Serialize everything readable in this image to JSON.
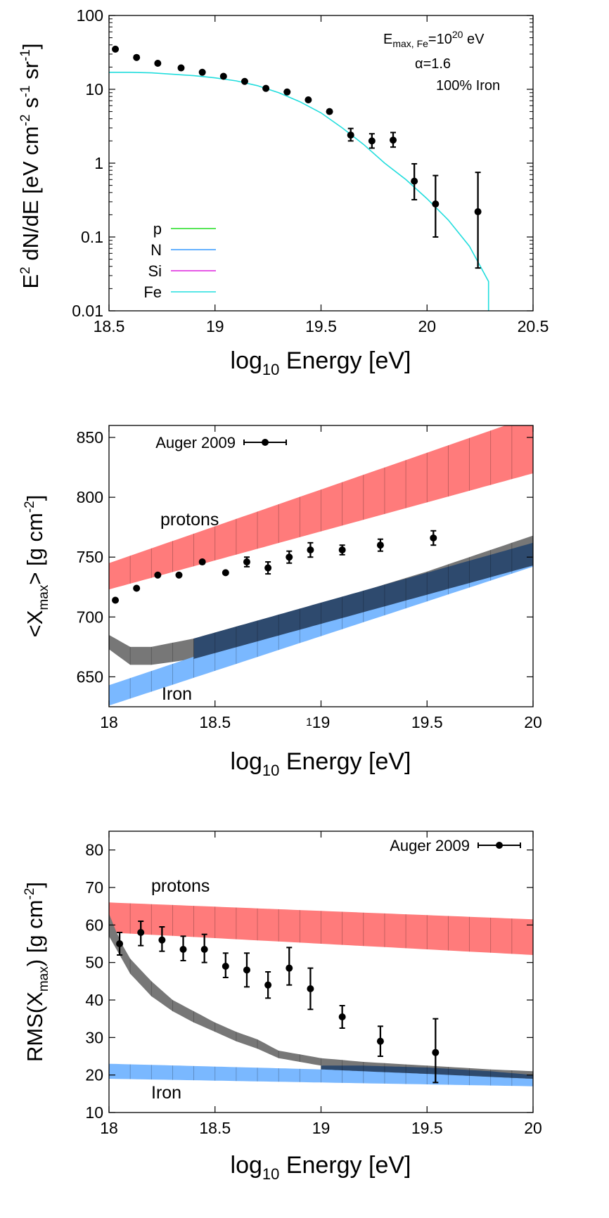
{
  "chart_data": [
    {
      "type": "scatter",
      "xlabel": {
        "main": "log",
        "sub": "10",
        "rest": " Energy [eV]"
      },
      "ylabel": {
        "pre": "E",
        "sup1": "2",
        "mid": " dN/dE [eV cm",
        "sup2": "-2",
        "mid2": " s",
        "sup3": "-1",
        "mid3": " sr",
        "sup4": "-1",
        "end": "]"
      },
      "xlim": [
        18.5,
        20.5
      ],
      "ylim": [
        0.01,
        100
      ],
      "yscale": "log",
      "xticks": [
        {
          "v": 18.5,
          "label": "18.5"
        },
        {
          "v": 19,
          "label": "19"
        },
        {
          "v": 19.5,
          "label": "19.5"
        },
        {
          "v": 20,
          "label": "20"
        },
        {
          "v": 20.5,
          "label": "20.5"
        }
      ],
      "yticks": [
        {
          "v": 0.01,
          "label": "0.01"
        },
        {
          "v": 0.1,
          "label": "0.1"
        },
        {
          "v": 1,
          "label": "1"
        },
        {
          "v": 10,
          "label": "10"
        },
        {
          "v": 100,
          "label": "100"
        }
      ],
      "annotation": {
        "line1_pre": "E",
        "line1_sub": "max, Fe",
        "line1_mid": "=10",
        "line1_sup": "20",
        "line1_end": " eV",
        "line2": "α=1.6",
        "line3": "100% Iron"
      },
      "legend": [
        {
          "name": "p",
          "color": "#22dd22"
        },
        {
          "name": "N",
          "color": "#3399ff"
        },
        {
          "name": "Si",
          "color": "#dd22dd"
        },
        {
          "name": "Fe",
          "color": "#22dddd"
        }
      ],
      "model_fe": {
        "name": "Fe",
        "color": "#22dddd",
        "points": [
          [
            18.5,
            17.0
          ],
          [
            18.6,
            17.0
          ],
          [
            18.7,
            16.7
          ],
          [
            18.8,
            16.0
          ],
          [
            18.9,
            15.3
          ],
          [
            19.0,
            14.3
          ],
          [
            19.1,
            13.0
          ],
          [
            19.2,
            11.2
          ],
          [
            19.3,
            9.0
          ],
          [
            19.4,
            6.8
          ],
          [
            19.5,
            4.8
          ],
          [
            19.6,
            3.0
          ],
          [
            19.7,
            1.8
          ],
          [
            19.8,
            1.0
          ],
          [
            19.9,
            0.6
          ],
          [
            20.0,
            0.33
          ],
          [
            20.1,
            0.17
          ],
          [
            20.2,
            0.075
          ],
          [
            20.29,
            0.025
          ],
          [
            20.29,
            0.01
          ]
        ]
      },
      "data": [
        {
          "x": 18.53,
          "y": 35
        },
        {
          "x": 18.63,
          "y": 27
        },
        {
          "x": 18.73,
          "y": 22.5
        },
        {
          "x": 18.84,
          "y": 19.5
        },
        {
          "x": 18.94,
          "y": 17
        },
        {
          "x": 19.04,
          "y": 15
        },
        {
          "x": 19.14,
          "y": 12.8
        },
        {
          "x": 19.24,
          "y": 10.3
        },
        {
          "x": 19.34,
          "y": 9.2
        },
        {
          "x": 19.44,
          "y": 7.2
        },
        {
          "x": 19.54,
          "y": 5.0
        },
        {
          "x": 19.64,
          "y": 2.4,
          "lo": 2.0,
          "hi": 2.95
        },
        {
          "x": 19.74,
          "y": 2.0,
          "lo": 1.6,
          "hi": 2.5
        },
        {
          "x": 19.84,
          "y": 2.05,
          "lo": 1.65,
          "hi": 2.6
        },
        {
          "x": 19.94,
          "y": 0.57,
          "lo": 0.32,
          "hi": 0.98
        },
        {
          "x": 20.04,
          "y": 0.28,
          "lo": 0.1,
          "hi": 0.68
        },
        {
          "x": 20.24,
          "y": 0.22,
          "lo": 0.038,
          "hi": 0.75
        }
      ]
    },
    {
      "type": "scatter",
      "xlabel": {
        "main": "log",
        "sub": "10",
        "rest": " Energy [eV]"
      },
      "ylabel": {
        "pre": "<X",
        "sub": "max",
        "mid": "> [g cm",
        "sup": "-2",
        "end": "]"
      },
      "xlim": [
        18,
        20
      ],
      "ylim": [
        625,
        860
      ],
      "xticks": [
        {
          "v": 18,
          "label": "18"
        },
        {
          "v": 18.5,
          "label": "18.5"
        },
        {
          "v": 19,
          "label": "19"
        },
        {
          "v": 19.5,
          "label": "19.5"
        },
        {
          "v": 20,
          "label": "20"
        }
      ],
      "yticks": [
        {
          "v": 650,
          "label": "650"
        },
        {
          "v": 700,
          "label": "700"
        },
        {
          "v": 750,
          "label": "750"
        },
        {
          "v": 800,
          "label": "800"
        },
        {
          "v": 850,
          "label": "850"
        }
      ],
      "stray_label": "1",
      "legend": [
        {
          "name": "Auger 2009"
        }
      ],
      "labels": {
        "protons": "protons",
        "iron": "Iron"
      },
      "bands": [
        {
          "name": "protons",
          "color": "#ff7b7b",
          "x": [
            18,
            20
          ],
          "lower": [
            723,
            820
          ],
          "upper": [
            745,
            868
          ]
        },
        {
          "name": "mixed",
          "color": "#777777",
          "x": [
            18,
            18.1,
            18.2,
            18.4,
            18.6,
            19,
            19.5,
            20
          ],
          "lower": [
            673,
            660,
            660,
            665,
            675,
            695,
            720,
            745
          ],
          "upper": [
            685,
            675,
            675,
            682,
            692,
            711,
            738,
            768
          ]
        },
        {
          "name": "iron",
          "color": "#7ab8ff",
          "x": [
            18,
            20
          ],
          "lower": [
            626,
            742
          ],
          "upper": [
            643,
            762
          ]
        },
        {
          "name": "overlap",
          "color": "#2e4a6e",
          "x": [
            18.4,
            20
          ],
          "lower": [
            665,
            743
          ],
          "upper": [
            682,
            762
          ]
        }
      ],
      "data": [
        {
          "x": 18.03,
          "y": 714
        },
        {
          "x": 18.13,
          "y": 724
        },
        {
          "x": 18.23,
          "y": 735
        },
        {
          "x": 18.33,
          "y": 735
        },
        {
          "x": 18.44,
          "y": 746
        },
        {
          "x": 18.55,
          "y": 737
        },
        {
          "x": 18.65,
          "y": 746,
          "lo": 742,
          "hi": 750
        },
        {
          "x": 18.75,
          "y": 741,
          "lo": 736,
          "hi": 746
        },
        {
          "x": 18.85,
          "y": 750,
          "lo": 745,
          "hi": 755
        },
        {
          "x": 18.95,
          "y": 756,
          "lo": 750,
          "hi": 762
        },
        {
          "x": 19.1,
          "y": 756,
          "lo": 752,
          "hi": 760
        },
        {
          "x": 19.28,
          "y": 760,
          "lo": 755,
          "hi": 765
        },
        {
          "x": 19.53,
          "y": 766,
          "lo": 760,
          "hi": 772
        }
      ]
    },
    {
      "type": "scatter",
      "xlabel": {
        "main": "log",
        "sub": "10",
        "rest": " Energy [eV]"
      },
      "ylabel": {
        "pre": "RMS(X",
        "sub": "max",
        "mid": ") [g cm",
        "sup": "-2",
        "end": "]"
      },
      "xlim": [
        18,
        20
      ],
      "ylim": [
        10,
        85
      ],
      "xticks": [
        {
          "v": 18,
          "label": "18"
        },
        {
          "v": 18.5,
          "label": "18.5"
        },
        {
          "v": 19,
          "label": "19"
        },
        {
          "v": 19.5,
          "label": "19.5"
        },
        {
          "v": 20,
          "label": "20"
        }
      ],
      "yticks": [
        {
          "v": 10,
          "label": "10"
        },
        {
          "v": 20,
          "label": "20"
        },
        {
          "v": 30,
          "label": "30"
        },
        {
          "v": 40,
          "label": "40"
        },
        {
          "v": 50,
          "label": "50"
        },
        {
          "v": 60,
          "label": "60"
        },
        {
          "v": 70,
          "label": "70"
        },
        {
          "v": 80,
          "label": "80"
        }
      ],
      "legend": [
        {
          "name": "Auger 2009"
        }
      ],
      "labels": {
        "protons": "protons",
        "iron": "Iron"
      },
      "bands": [
        {
          "name": "protons",
          "color": "#ff7b7b",
          "x": [
            18,
            20
          ],
          "lower": [
            58,
            52
          ],
          "upper": [
            66,
            61.5
          ]
        },
        {
          "name": "iron",
          "color": "#7ab8ff",
          "x": [
            18,
            20
          ],
          "lower": [
            19,
            17
          ],
          "upper": [
            23,
            20
          ]
        },
        {
          "name": "mixed",
          "color": "#777777",
          "x": [
            18,
            18.05,
            18.1,
            18.2,
            18.3,
            18.4,
            18.5,
            18.6,
            18.7,
            18.8,
            19,
            19.2,
            19.5,
            19.8,
            20
          ],
          "lower": [
            57,
            52,
            47,
            41,
            37,
            34,
            31.5,
            29,
            27,
            24.5,
            22.5,
            21.5,
            20.5,
            19.5,
            19
          ],
          "upper": [
            63,
            56,
            51,
            45,
            40,
            37,
            34,
            31.5,
            29.5,
            26.5,
            24.5,
            23.5,
            22.5,
            21.5,
            21
          ]
        },
        {
          "name": "overlap",
          "color": "#2e4a6e",
          "x": [
            19,
            19.2,
            19.5,
            19.8,
            20
          ],
          "lower": [
            21.5,
            21,
            20.3,
            19.5,
            19
          ],
          "upper": [
            22.5,
            22.5,
            22,
            21,
            20
          ]
        }
      ],
      "data": [
        {
          "x": 18.05,
          "y": 55,
          "lo": 52,
          "hi": 58
        },
        {
          "x": 18.15,
          "y": 58,
          "lo": 54.5,
          "hi": 61
        },
        {
          "x": 18.25,
          "y": 56,
          "lo": 53,
          "hi": 59.5
        },
        {
          "x": 18.35,
          "y": 53.5,
          "lo": 50.5,
          "hi": 57
        },
        {
          "x": 18.45,
          "y": 53.5,
          "lo": 50,
          "hi": 57.5
        },
        {
          "x": 18.55,
          "y": 49,
          "lo": 46,
          "hi": 52.5
        },
        {
          "x": 18.65,
          "y": 48,
          "lo": 43.5,
          "hi": 52.5
        },
        {
          "x": 18.75,
          "y": 44,
          "lo": 40.5,
          "hi": 47.5
        },
        {
          "x": 18.85,
          "y": 48.5,
          "lo": 44,
          "hi": 54
        },
        {
          "x": 18.95,
          "y": 43,
          "lo": 37.5,
          "hi": 48.5
        },
        {
          "x": 19.1,
          "y": 35.5,
          "lo": 32.5,
          "hi": 38.5
        },
        {
          "x": 19.28,
          "y": 29,
          "lo": 25,
          "hi": 33
        },
        {
          "x": 19.54,
          "y": 26,
          "lo": 18,
          "hi": 35
        }
      ]
    }
  ]
}
